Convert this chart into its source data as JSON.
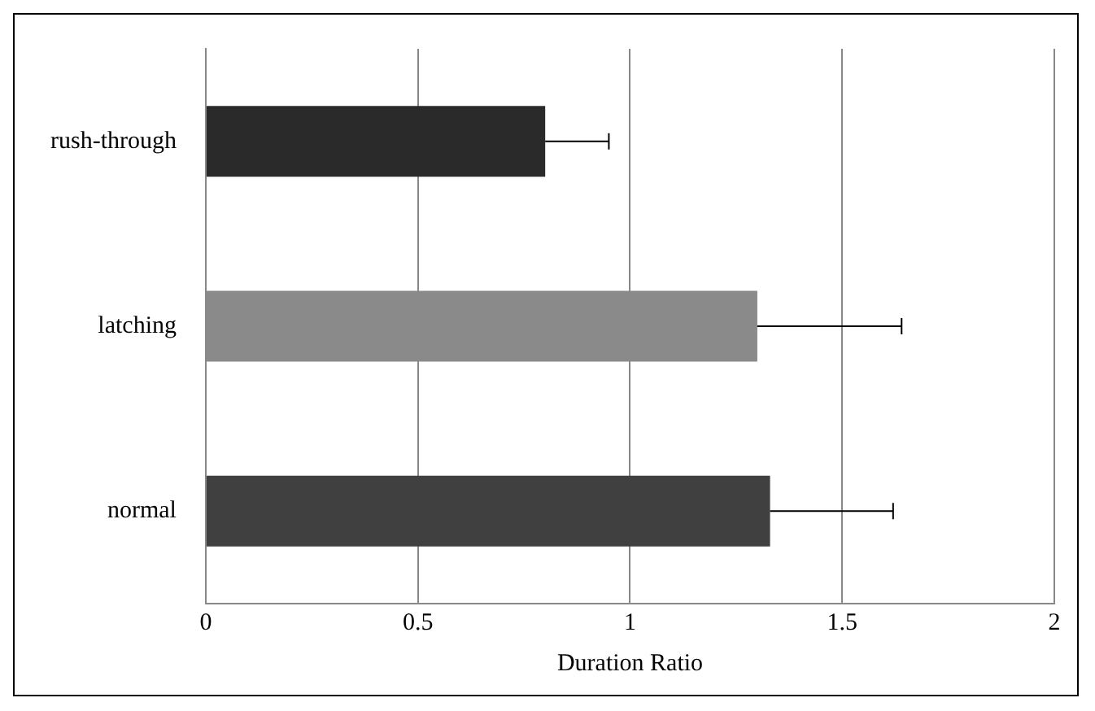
{
  "chart_data": {
    "type": "bar",
    "orientation": "horizontal",
    "xlabel": "Duration Ratio",
    "categories": [
      "rush-through",
      "latching",
      "normal"
    ],
    "values": [
      0.8,
      1.3,
      1.33
    ],
    "colors": [
      "#2a2a2a",
      "#8a8a8a",
      "#404040"
    ],
    "errors": [
      [
        0.8,
        0.95
      ],
      [
        1.3,
        1.64
      ],
      [
        1.33,
        1.62
      ]
    ],
    "xlim": [
      0,
      2
    ],
    "xticks": [
      0,
      0.5,
      1,
      1.5,
      2
    ],
    "grid": "x",
    "legend": false
  }
}
